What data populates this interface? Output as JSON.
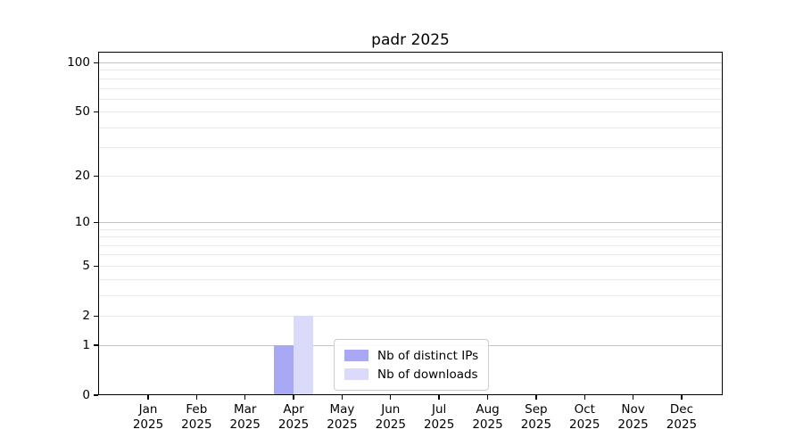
{
  "colors": {
    "background": "#ffffff",
    "axis": "#000000",
    "grid_major": "#c4c4c4",
    "grid_minor": "#e9e9e9",
    "legend_border": "#cccccc",
    "series_ips": "#a8a8f5",
    "series_downloads": "#dadafa"
  },
  "chart_data": {
    "type": "bar",
    "title": "padr 2025",
    "xlabel": "",
    "ylabel": "",
    "yscale": "log1p",
    "ylim": [
      0,
      117
    ],
    "grid": true,
    "legend_position": "bottom-center",
    "ytick_values": [
      0,
      1,
      2,
      5,
      10,
      20,
      50,
      100
    ],
    "ytick_labels": [
      "0",
      "1",
      "2",
      "5",
      "10",
      "20",
      "50",
      "100"
    ],
    "major_gridlines": [
      1,
      10,
      100
    ],
    "minor_gridlines": [
      2,
      3,
      4,
      5,
      6,
      7,
      8,
      9,
      20,
      30,
      40,
      50,
      60,
      70,
      80,
      90
    ],
    "categories": [
      "Jan 2025",
      "Feb 2025",
      "Mar 2025",
      "Apr 2025",
      "May 2025",
      "Jun 2025",
      "Jul 2025",
      "Aug 2025",
      "Sep 2025",
      "Oct 2025",
      "Nov 2025",
      "Dec 2025"
    ],
    "series": [
      {
        "name": "Nb of distinct IPs",
        "color": "#a8a8f5",
        "values": [
          0,
          0,
          0,
          1,
          0,
          0,
          0,
          0,
          0,
          0,
          0,
          0
        ]
      },
      {
        "name": "Nb of downloads",
        "color": "#dadafa",
        "values": [
          0,
          0,
          0,
          2,
          0,
          0,
          0,
          0,
          0,
          0,
          0,
          0
        ]
      }
    ]
  }
}
